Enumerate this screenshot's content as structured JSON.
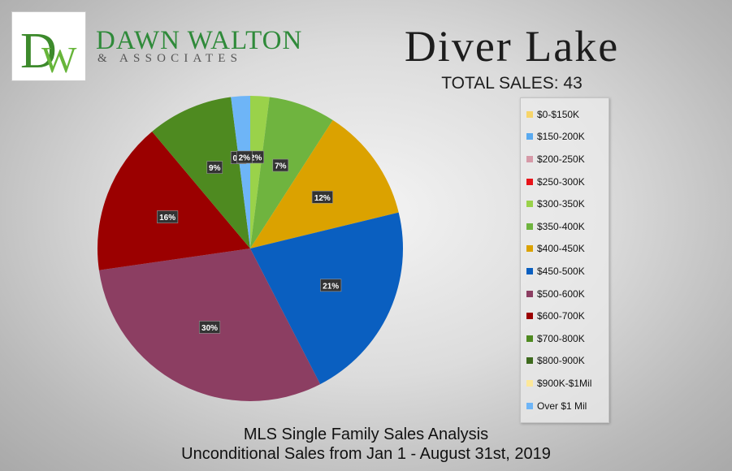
{
  "brand": {
    "monogram": "DW",
    "name": "DAWN WALTON",
    "tagline": "& ASSOCIATES"
  },
  "header": {
    "title": "Diver Lake",
    "subtitle": "TOTAL SALES: 43"
  },
  "footer": {
    "line1": "MLS Single Family Sales Analysis",
    "line2": "Unconditional Sales from Jan 1 - August 31st, 2019"
  },
  "chart_data": {
    "type": "pie",
    "title": "Diver Lake",
    "legend_position": "right",
    "categories": [
      "$0-$150K",
      "$150-200K",
      "$200-250K",
      "$250-300K",
      "$300-350K",
      "$350-400K",
      "$400-450K",
      "$450-500K",
      "$500-600K",
      "$600-700K",
      "$700-800K",
      "$800-900K",
      "$900K-$1Mil",
      "Over $1 Mil"
    ],
    "colors": [
      "#f7d56a",
      "#5aaaf0",
      "#d69aa8",
      "#e8141a",
      "#9ad24a",
      "#6fb43f",
      "#dba200",
      "#0a5fc0",
      "#8c3e62",
      "#9b0000",
      "#4e8a20",
      "#3e6a1e",
      "#fde89a",
      "#6eb5f7"
    ],
    "values": [
      0,
      0,
      0,
      0,
      2,
      7,
      12,
      21,
      30,
      16,
      9,
      0,
      0,
      2
    ],
    "data_labels": [
      "0%",
      "0%",
      "0%",
      "0%",
      "2%",
      "7%",
      "12%",
      "21%",
      "30%",
      "16%",
      "9%",
      "0%",
      "0%",
      "2%"
    ],
    "slice_order": [
      4,
      5,
      6,
      7,
      8,
      9,
      10,
      11,
      12,
      13
    ]
  }
}
